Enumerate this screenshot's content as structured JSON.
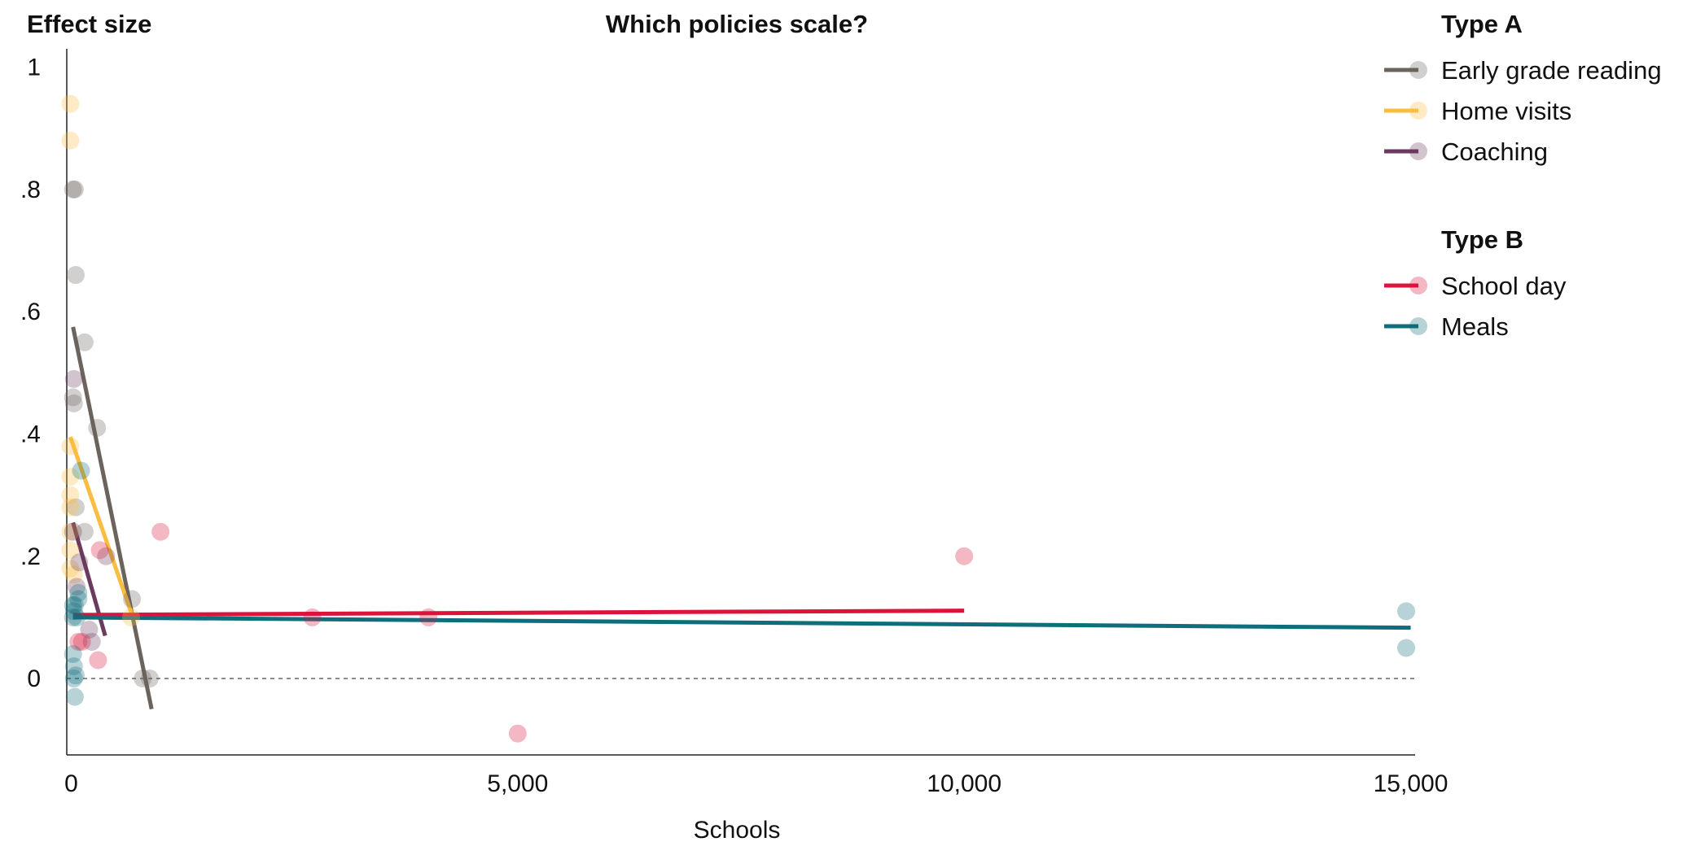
{
  "chart_data": {
    "type": "scatter",
    "title": "Which policies scale?",
    "ylabel": "Effect size",
    "xlabel": "Schools",
    "xlim": [
      -50,
      15050
    ],
    "ylim": [
      -0.125,
      1.03
    ],
    "x_ticks": [
      0,
      5000,
      10000,
      15000
    ],
    "x_tick_labels": [
      "0",
      "5,000",
      "10,000",
      "15,000"
    ],
    "y_ticks": [
      0,
      0.2,
      0.4,
      0.6,
      0.8,
      1
    ],
    "y_tick_labels": [
      "0",
      ".2",
      ".4",
      ".6",
      ".8",
      "1"
    ],
    "reference_line_y": 0,
    "legend_position": "right",
    "legend_groups": [
      {
        "title": "Type A",
        "series": [
          "Early grade reading",
          "Home visits",
          "Coaching"
        ]
      },
      {
        "title": "Type B",
        "series": [
          "School day",
          "Meals"
        ]
      }
    ],
    "series": [
      {
        "name": "Early grade reading",
        "color": "#6b635c",
        "points": [
          [
            20,
            0.8
          ],
          [
            40,
            0.8
          ],
          [
            50,
            0.66
          ],
          [
            20,
            0.46
          ],
          [
            30,
            0.45
          ],
          [
            150,
            0.55
          ],
          [
            290,
            0.41
          ],
          [
            150,
            0.24
          ],
          [
            50,
            0.28
          ],
          [
            680,
            0.13
          ],
          [
            800,
            0.0
          ],
          [
            880,
            0.0
          ]
        ],
        "trend": [
          [
            20,
            0.575
          ],
          [
            900,
            -0.05
          ]
        ]
      },
      {
        "name": "Home visits",
        "color": "#fbbd3f",
        "points": [
          [
            -10,
            0.94
          ],
          [
            -10,
            0.88
          ],
          [
            -10,
            0.38
          ],
          [
            -10,
            0.33
          ],
          [
            -10,
            0.3
          ],
          [
            -10,
            0.28
          ],
          [
            -10,
            0.24
          ],
          [
            -10,
            0.21
          ],
          [
            -10,
            0.18
          ],
          [
            30,
            0.17
          ],
          [
            670,
            0.1
          ]
        ],
        "trend": [
          [
            -10,
            0.395
          ],
          [
            690,
            0.1
          ]
        ]
      },
      {
        "name": "Coaching",
        "color": "#6b3a5e",
        "points": [
          [
            30,
            0.49
          ],
          [
            20,
            0.24
          ],
          [
            60,
            0.15
          ],
          [
            90,
            0.19
          ],
          [
            200,
            0.08
          ],
          [
            230,
            0.06
          ],
          [
            390,
            0.2
          ]
        ],
        "trend": [
          [
            20,
            0.255
          ],
          [
            380,
            0.07
          ]
        ]
      },
      {
        "name": "School day",
        "color": "#dc143c",
        "points": [
          [
            320,
            0.21
          ],
          [
            1000,
            0.24
          ],
          [
            10000,
            0.2
          ],
          [
            2700,
            0.1
          ],
          [
            4000,
            0.1
          ],
          [
            5000,
            -0.09
          ],
          [
            300,
            0.03
          ],
          [
            80,
            0.06
          ],
          [
            120,
            0.06
          ]
        ],
        "trend": [
          [
            20,
            0.104
          ],
          [
            10000,
            0.111
          ]
        ]
      },
      {
        "name": "Meals",
        "color": "#0f6e7c",
        "points": [
          [
            110,
            0.34
          ],
          [
            80,
            0.14
          ],
          [
            20,
            0.12
          ],
          [
            40,
            0.12
          ],
          [
            30,
            0.11
          ],
          [
            20,
            0.1
          ],
          [
            60,
            0.1
          ],
          [
            80,
            0.13
          ],
          [
            20,
            0.04
          ],
          [
            30,
            0.02
          ],
          [
            30,
            0.0
          ],
          [
            50,
            0.005
          ],
          [
            40,
            -0.03
          ],
          [
            14950,
            0.11
          ],
          [
            14950,
            0.05
          ]
        ],
        "trend": [
          [
            20,
            0.1
          ],
          [
            15000,
            0.083
          ]
        ]
      }
    ]
  }
}
